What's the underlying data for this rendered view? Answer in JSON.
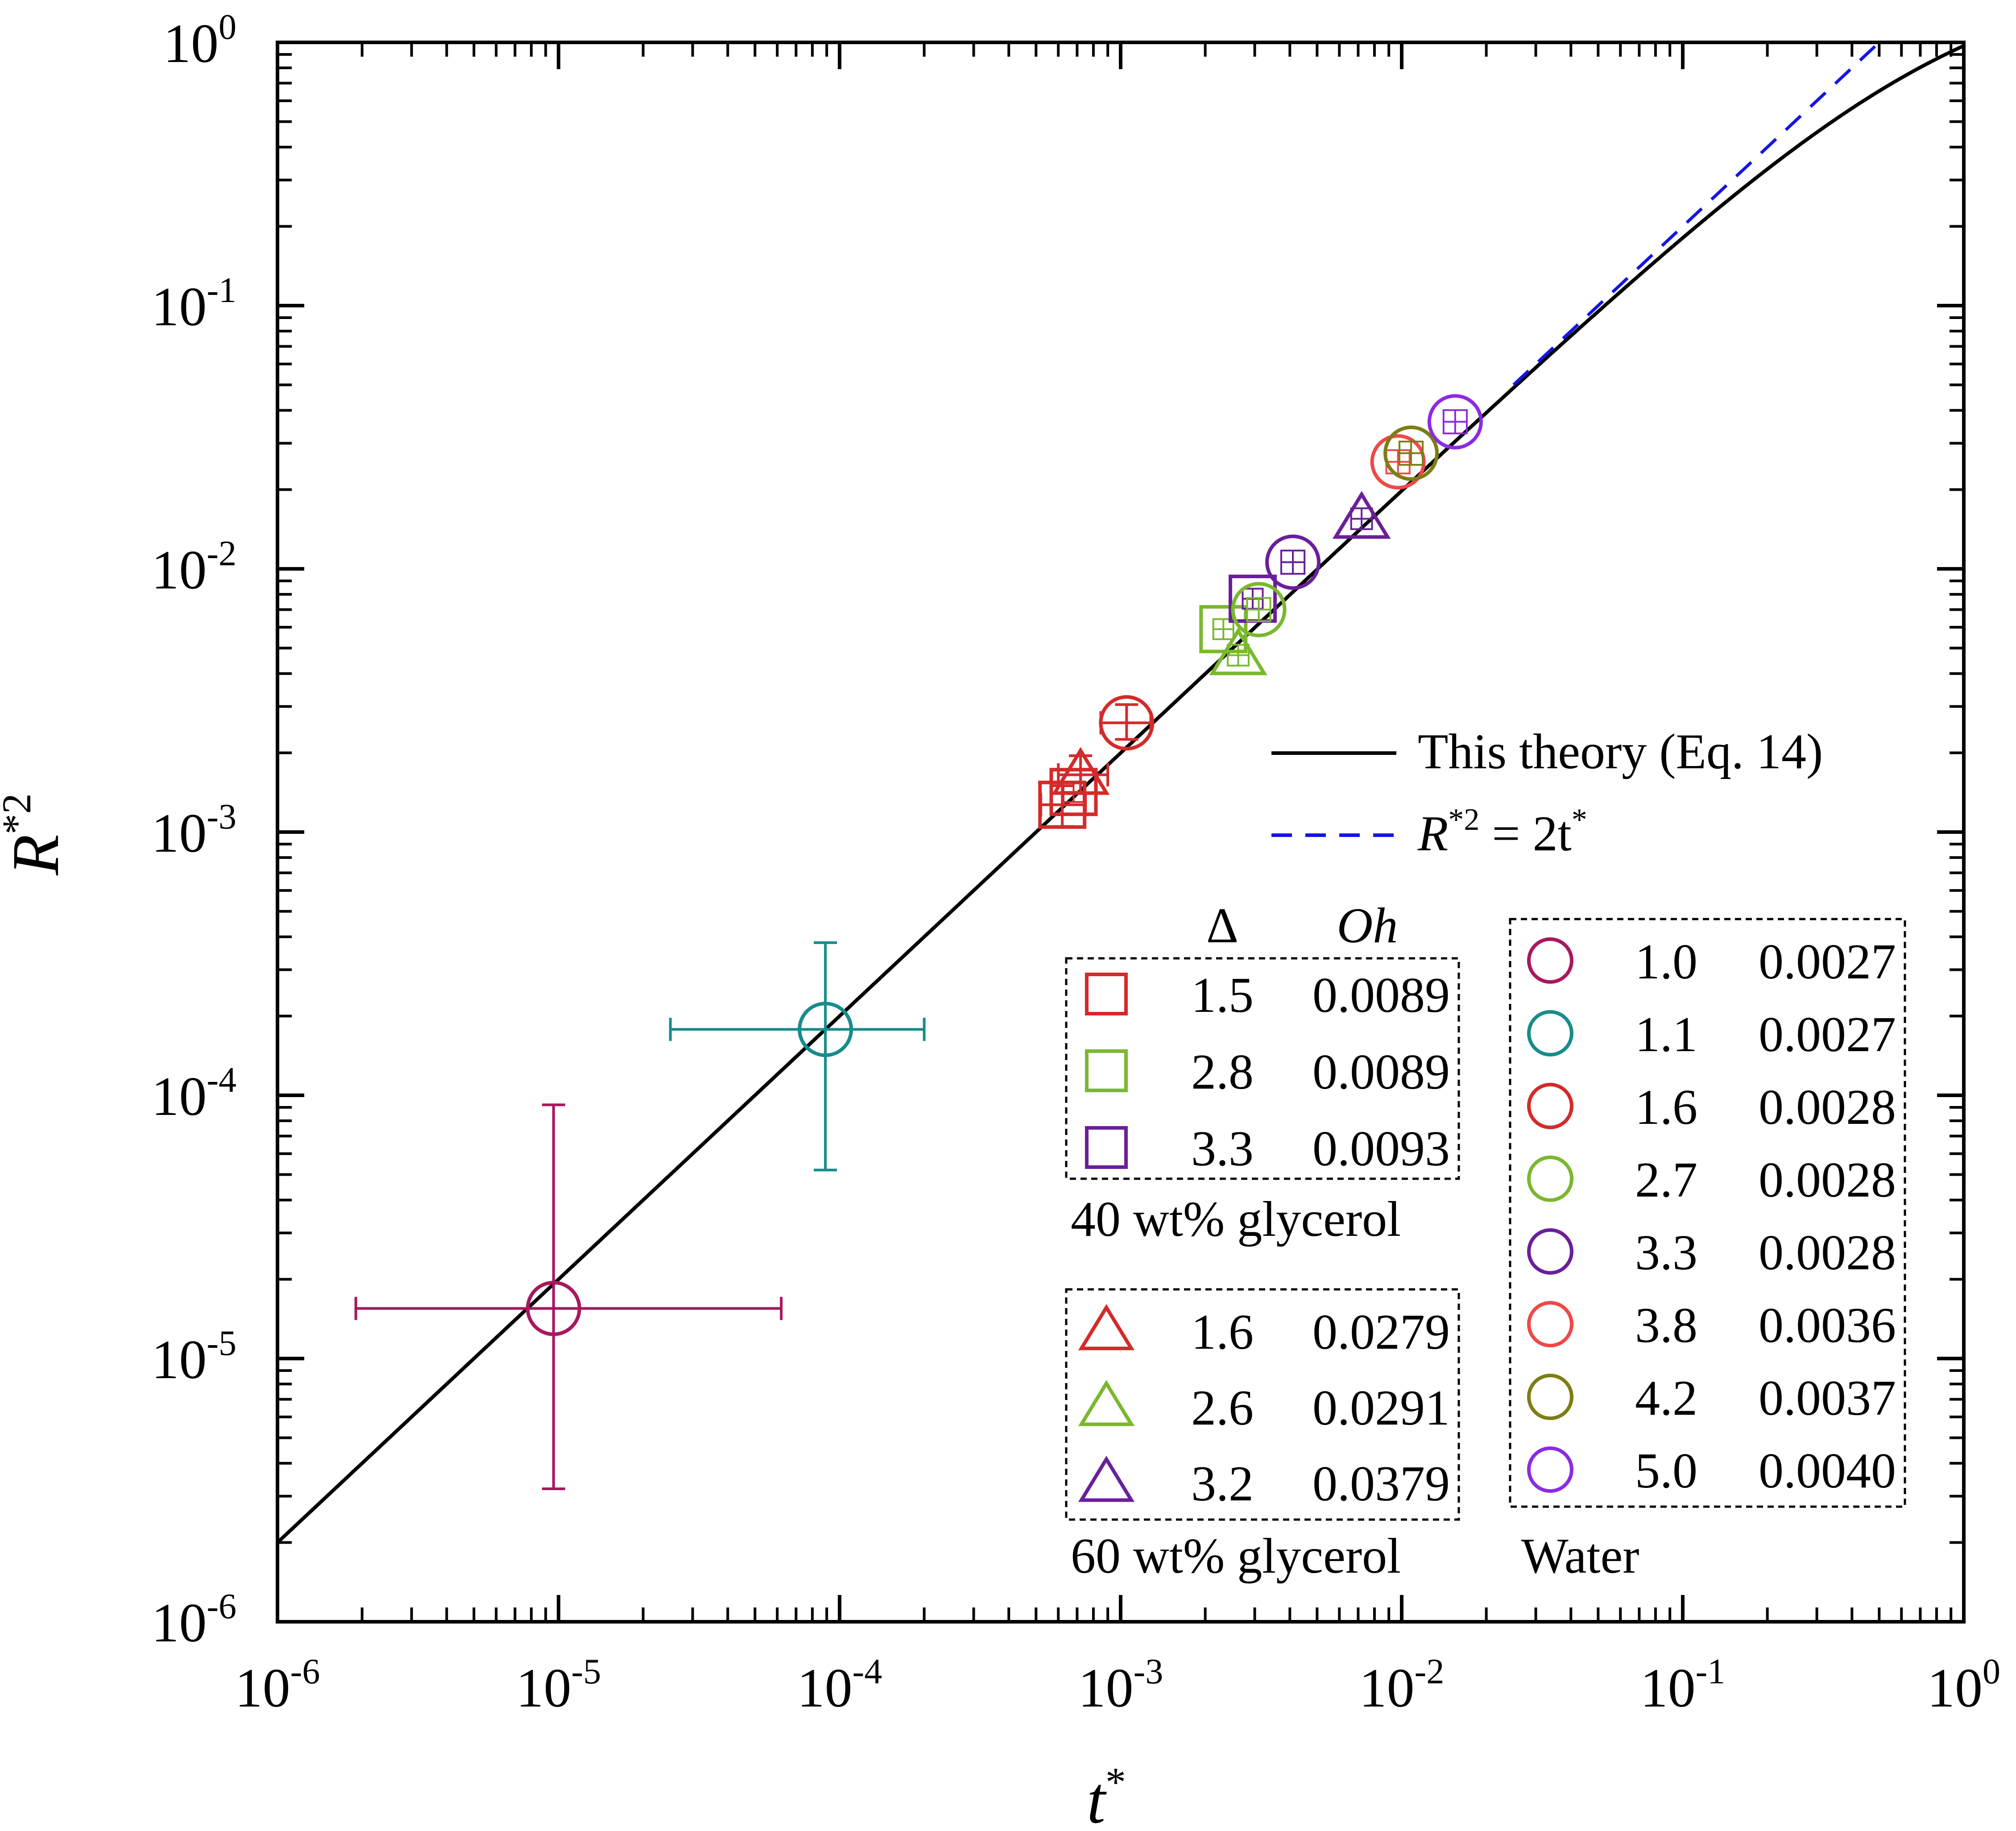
{
  "chart_data": {
    "type": "scatter",
    "title": "",
    "xlabel": {
      "base": "t",
      "sup": "*"
    },
    "ylabel": {
      "base": "R",
      "sup": "*2"
    },
    "xscale": "log",
    "yscale": "log",
    "xlim": [
      1e-06,
      1
    ],
    "ylim": [
      1e-06,
      1
    ],
    "tick_labels": [
      {
        "base": "10",
        "exp": "-6"
      },
      {
        "base": "10",
        "exp": "-5"
      },
      {
        "base": "10",
        "exp": "-4"
      },
      {
        "base": "10",
        "exp": "-3"
      },
      {
        "base": "10",
        "exp": "-2"
      },
      {
        "base": "10",
        "exp": "-1"
      },
      {
        "base": "10",
        "exp": "0"
      }
    ],
    "lines": [
      {
        "name": "This theory (Eq. 14)",
        "style": "solid",
        "color": "#000000"
      },
      {
        "name_base": "R",
        "name_sup1": "*2",
        "name_mid": " = 2t",
        "name_sup2": "*",
        "style": "dashed",
        "color": "#1414e6"
      }
    ],
    "legend_header": {
      "delta": "Δ",
      "oh": "Oh"
    },
    "groups": [
      {
        "name": "40 wt% glycerol",
        "marker": "square",
        "series": [
          {
            "delta": "1.5",
            "oh": "0.0089",
            "color": "#d42a2a",
            "points": [
              {
                "x": 0.00062,
                "y": 0.00127,
                "xerr": [
                  0.00052,
                  0.00075
                ],
                "yerr": [
                  0.00105,
                  0.0015
                ]
              },
              {
                "x": 0.00068,
                "y": 0.00142
              }
            ]
          },
          {
            "delta": "2.8",
            "oh": "0.0089",
            "color": "#7ab82e",
            "points": [
              {
                "x": 0.00232,
                "y": 0.0059
              }
            ]
          },
          {
            "delta": "3.3",
            "oh": "0.0093",
            "color": "#6a1f9a",
            "points": [
              {
                "x": 0.00295,
                "y": 0.0077
              }
            ]
          }
        ]
      },
      {
        "name": "60 wt% glycerol",
        "marker": "triangle",
        "series": [
          {
            "delta": "1.6",
            "oh": "0.0279",
            "color": "#d42a2a",
            "points": [
              {
                "x": 0.00072,
                "y": 0.00165,
                "xerr": [
                  0.0006,
                  0.0009
                ],
                "yerr": [
                  0.0014,
                  0.00195
                ]
              }
            ]
          },
          {
            "delta": "2.6",
            "oh": "0.0291",
            "color": "#7ab82e",
            "points": [
              {
                "x": 0.00262,
                "y": 0.0047
              }
            ]
          },
          {
            "delta": "3.2",
            "oh": "0.0379",
            "color": "#6a1f9a",
            "points": [
              {
                "x": 0.0072,
                "y": 0.0155
              }
            ]
          }
        ]
      },
      {
        "name": "Water",
        "marker": "circle",
        "series": [
          {
            "delta": "1.0",
            "oh": "0.0027",
            "color": "#a8185e",
            "points": [
              {
                "x": 9.6e-06,
                "y": 1.55e-05,
                "xerr": [
                  1.9e-06,
                  6.2e-05
                ],
                "yerr": [
                  3.2e-06,
                  9.2e-05
                ]
              }
            ]
          },
          {
            "delta": "1.1",
            "oh": "0.0027",
            "color": "#178c8c",
            "points": [
              {
                "x": 8.9e-05,
                "y": 0.000178,
                "xerr": [
                  2.5e-05,
                  0.0002
                ],
                "yerr": [
                  5.2e-05,
                  0.00038
                ]
              }
            ]
          },
          {
            "delta": "1.6",
            "oh": "0.0028",
            "color": "#d42a2a",
            "points": [
              {
                "x": 0.00105,
                "y": 0.0026,
                "xerr": [
                  0.00085,
                  0.00128
                ],
                "yerr": [
                  0.00225,
                  0.00305
                ]
              }
            ]
          },
          {
            "delta": "2.7",
            "oh": "0.0028",
            "color": "#7ab82e",
            "points": [
              {
                "x": 0.0031,
                "y": 0.007
              }
            ]
          },
          {
            "delta": "3.3",
            "oh": "0.0028",
            "color": "#6a1f9a",
            "points": [
              {
                "x": 0.0041,
                "y": 0.0106
              }
            ]
          },
          {
            "delta": "3.8",
            "oh": "0.0036",
            "color": "#f04848",
            "points": [
              {
                "x": 0.0097,
                "y": 0.0255
              }
            ]
          },
          {
            "delta": "4.2",
            "oh": "0.0037",
            "color": "#7d7d14",
            "points": [
              {
                "x": 0.0108,
                "y": 0.0275
              }
            ]
          },
          {
            "delta": "5.0",
            "oh": "0.0040",
            "color": "#8b2be2",
            "points": [
              {
                "x": 0.0155,
                "y": 0.0362
              }
            ]
          }
        ]
      }
    ]
  }
}
